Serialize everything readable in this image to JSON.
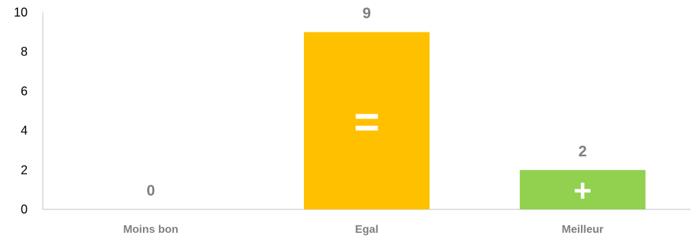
{
  "chart_data": {
    "type": "bar",
    "categories": [
      "Moins bon",
      "Egal",
      "Meilleur"
    ],
    "values": [
      0,
      9,
      2
    ],
    "data_labels": [
      "0",
      "9",
      "2"
    ],
    "bar_symbols": [
      "",
      "=",
      "+"
    ],
    "bar_colors": [
      "#ffc000",
      "#ffc000",
      "#92d050"
    ],
    "yticks": [
      "0",
      "2",
      "4",
      "6",
      "8",
      "10"
    ],
    "ylim": [
      0,
      10
    ],
    "title": "",
    "xlabel": "",
    "ylabel": "",
    "grid": false,
    "legend": "none"
  }
}
